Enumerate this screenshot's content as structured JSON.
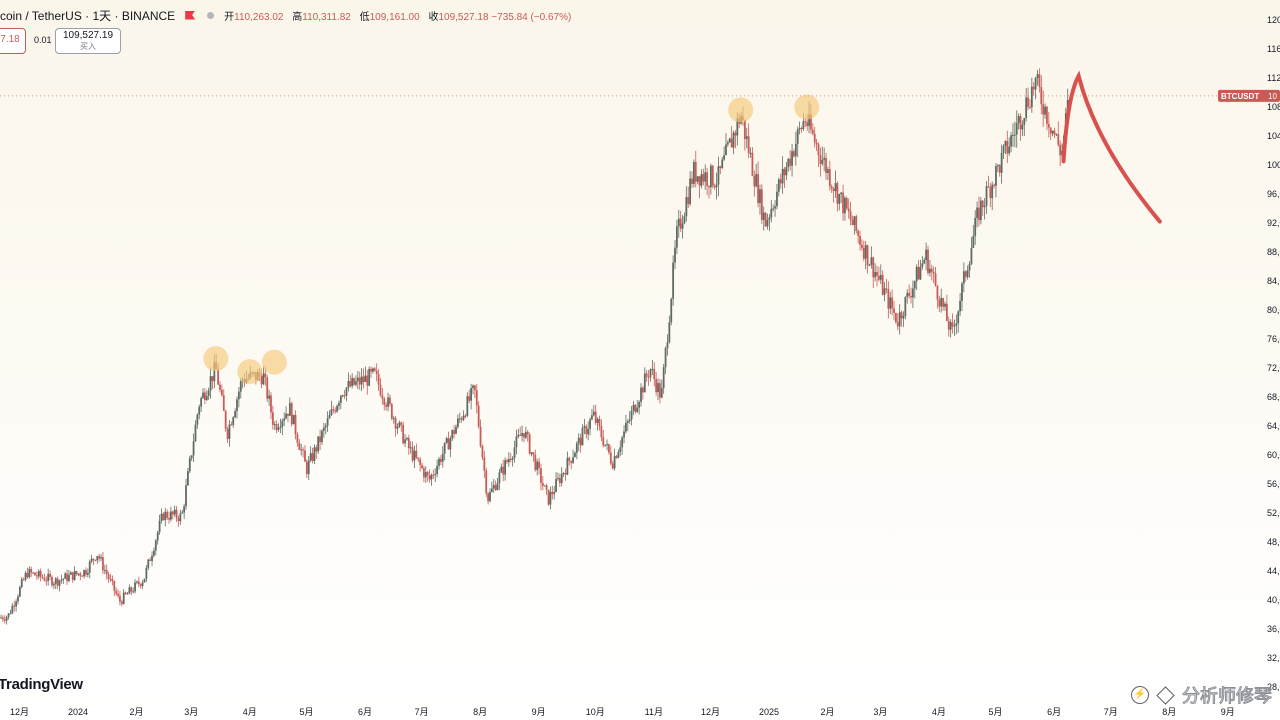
{
  "header": {
    "symbol": "coin / TetherUS · 1天 · BINANCE",
    "open_label": "开",
    "open_value": "110,263.02",
    "high_label": "高",
    "high_value": "110,311.82",
    "low_label": "低",
    "low_value": "109,161.00",
    "close_label": "收",
    "close_value": "109,527.18 −735.84 (−0.67%)"
  },
  "sell_box": {
    "price": "7.18"
  },
  "spread": "0.01",
  "buy_box": {
    "price": "109,527.19",
    "label": "买入"
  },
  "branding": {
    "logo": "TradingView",
    "watermark": "分析师修琴"
  },
  "colors": {
    "up": "#5e6b62",
    "down": "#c95b55",
    "background": "#fcf8ef",
    "highlight": "#f4c97a",
    "projection": "#d9514e"
  },
  "chart_data": {
    "type": "candlestick",
    "title": "BTCUSDT",
    "price_tag": {
      "symbol": "BTCUSDT",
      "value": "10"
    },
    "ylim": [
      28000,
      122000
    ],
    "y_ticks": [
      {
        "v": 28000,
        "label": "28,0"
      },
      {
        "v": 32000,
        "label": "32,0"
      },
      {
        "v": 36000,
        "label": "36,0"
      },
      {
        "v": 40000,
        "label": "40,0"
      },
      {
        "v": 44000,
        "label": "44,0"
      },
      {
        "v": 48000,
        "label": "48,0"
      },
      {
        "v": 52000,
        "label": "52,0"
      },
      {
        "v": 56000,
        "label": "56,0"
      },
      {
        "v": 60000,
        "label": "60,0"
      },
      {
        "v": 64000,
        "label": "64,0"
      },
      {
        "v": 68000,
        "label": "68,0"
      },
      {
        "v": 72000,
        "label": "72,0"
      },
      {
        "v": 76000,
        "label": "76,0"
      },
      {
        "v": 80000,
        "label": "80,0"
      },
      {
        "v": 84000,
        "label": "84,0"
      },
      {
        "v": 88000,
        "label": "88,0"
      },
      {
        "v": 92000,
        "label": "92,0"
      },
      {
        "v": 96000,
        "label": "96,0"
      },
      {
        "v": 100000,
        "label": "100,"
      },
      {
        "v": 104000,
        "label": "104,"
      },
      {
        "v": 108000,
        "label": "108,"
      },
      {
        "v": 112000,
        "label": "112,"
      },
      {
        "v": 116000,
        "label": "116,"
      },
      {
        "v": 120000,
        "label": "120,"
      }
    ],
    "x_ticks": [
      {
        "date": "2023-12-01",
        "label": "12月"
      },
      {
        "date": "2024-01-01",
        "label": "2024"
      },
      {
        "date": "2024-02-01",
        "label": "2月"
      },
      {
        "date": "2024-03-01",
        "label": "3月"
      },
      {
        "date": "2024-04-01",
        "label": "4月"
      },
      {
        "date": "2024-05-01",
        "label": "5月"
      },
      {
        "date": "2024-06-01",
        "label": "6月"
      },
      {
        "date": "2024-07-01",
        "label": "7月"
      },
      {
        "date": "2024-08-01",
        "label": "8月"
      },
      {
        "date": "2024-09-01",
        "label": "9月"
      },
      {
        "date": "2024-10-01",
        "label": "10月"
      },
      {
        "date": "2024-11-01",
        "label": "11月"
      },
      {
        "date": "2024-12-01",
        "label": "12月"
      },
      {
        "date": "2025-01-01",
        "label": "2025"
      },
      {
        "date": "2025-02-01",
        "label": "2月"
      },
      {
        "date": "2025-03-01",
        "label": "3月"
      },
      {
        "date": "2025-04-01",
        "label": "4月"
      },
      {
        "date": "2025-05-01",
        "label": "5月"
      },
      {
        "date": "2025-06-01",
        "label": "6月"
      },
      {
        "date": "2025-07-01",
        "label": "7月"
      },
      {
        "date": "2025-08-01",
        "label": "8月"
      },
      {
        "date": "2025-09-01",
        "label": "9月"
      }
    ],
    "price_path": [
      {
        "date": "2023-11-10",
        "price": 37000
      },
      {
        "date": "2023-11-25",
        "price": 37800
      },
      {
        "date": "2023-12-05",
        "price": 43800
      },
      {
        "date": "2023-12-20",
        "price": 42600
      },
      {
        "date": "2024-01-05",
        "price": 44000
      },
      {
        "date": "2024-01-11",
        "price": 46500
      },
      {
        "date": "2024-01-23",
        "price": 39800
      },
      {
        "date": "2024-02-05",
        "price": 43000
      },
      {
        "date": "2024-02-15",
        "price": 51800
      },
      {
        "date": "2024-02-25",
        "price": 51500
      },
      {
        "date": "2024-03-05",
        "price": 67000
      },
      {
        "date": "2024-03-14",
        "price": 72000
      },
      {
        "date": "2024-03-20",
        "price": 63000
      },
      {
        "date": "2024-03-28",
        "price": 70500
      },
      {
        "date": "2024-04-08",
        "price": 71000
      },
      {
        "date": "2024-04-14",
        "price": 64000
      },
      {
        "date": "2024-04-22",
        "price": 66500
      },
      {
        "date": "2024-05-01",
        "price": 58000
      },
      {
        "date": "2024-05-20",
        "price": 69000
      },
      {
        "date": "2024-06-06",
        "price": 71000
      },
      {
        "date": "2024-06-24",
        "price": 61000
      },
      {
        "date": "2024-07-05",
        "price": 56500
      },
      {
        "date": "2024-07-29",
        "price": 69000
      },
      {
        "date": "2024-08-05",
        "price": 54000
      },
      {
        "date": "2024-08-24",
        "price": 63500
      },
      {
        "date": "2024-09-06",
        "price": 53800
      },
      {
        "date": "2024-09-30",
        "price": 65500
      },
      {
        "date": "2024-10-10",
        "price": 59000
      },
      {
        "date": "2024-10-30",
        "price": 72000
      },
      {
        "date": "2024-11-05",
        "price": 68000
      },
      {
        "date": "2024-11-13",
        "price": 90000
      },
      {
        "date": "2024-11-22",
        "price": 99000
      },
      {
        "date": "2024-12-05",
        "price": 98000
      },
      {
        "date": "2024-12-17",
        "price": 107000
      },
      {
        "date": "2024-12-30",
        "price": 92000
      },
      {
        "date": "2025-01-20",
        "price": 106500
      },
      {
        "date": "2025-02-03",
        "price": 98000
      },
      {
        "date": "2025-02-25",
        "price": 86000
      },
      {
        "date": "2025-03-10",
        "price": 78500
      },
      {
        "date": "2025-03-25",
        "price": 87500
      },
      {
        "date": "2025-04-08",
        "price": 76500
      },
      {
        "date": "2025-04-22",
        "price": 93500
      },
      {
        "date": "2025-05-10",
        "price": 104000
      },
      {
        "date": "2025-05-22",
        "price": 111500
      },
      {
        "date": "2025-06-05",
        "price": 101500
      },
      {
        "date": "2025-06-09",
        "price": 109527
      }
    ],
    "highlight_points": [
      {
        "date": "2024-03-14",
        "price": 73300
      },
      {
        "date": "2024-04-01",
        "price": 71500
      },
      {
        "date": "2024-04-14",
        "price": 72800
      },
      {
        "date": "2024-12-17",
        "price": 107600
      },
      {
        "date": "2025-01-21",
        "price": 108000
      }
    ],
    "projection": [
      {
        "date": "2025-06-06",
        "price": 100500
      },
      {
        "date": "2025-06-14",
        "price": 112300
      },
      {
        "date": "2025-07-27",
        "price": 92200
      }
    ]
  }
}
